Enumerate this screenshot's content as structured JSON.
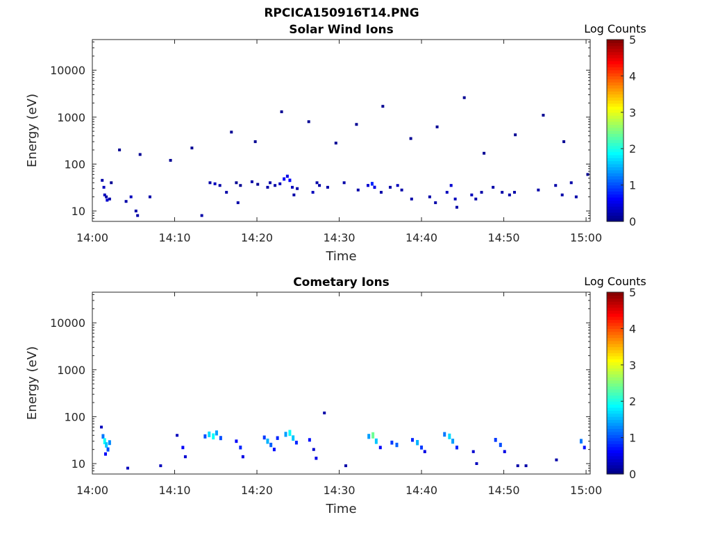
{
  "figure": {
    "title": "RPCICA150916T14.PNG"
  },
  "colorscale": {
    "label": "Log Counts",
    "ticks": [
      0,
      1,
      2,
      3,
      4,
      5
    ],
    "stops": [
      "#00007f",
      "#0000ff",
      "#0080ff",
      "#00ffff",
      "#80ff80",
      "#ffff00",
      "#ff8000",
      "#ff0000",
      "#7f0000"
    ]
  },
  "chart_data": [
    {
      "type": "heatmap",
      "title": "Solar Wind Ions",
      "xlabel": "Time",
      "ylabel": "Energy (eV)",
      "x_ticks": [
        "14:00",
        "14:10",
        "14:20",
        "14:30",
        "14:40",
        "14:50",
        "15:00"
      ],
      "y_scale": "log",
      "y_ticks": [
        10,
        100,
        1000,
        10000
      ],
      "y_tick_labels": [
        "10",
        "100",
        "1000",
        "10000"
      ],
      "ylim": [
        6,
        45000
      ],
      "xlim_minutes": [
        0,
        60.5
      ],
      "colorbar_label": "Log Counts",
      "clim": [
        0,
        5
      ],
      "cells": [
        [
          1.2,
          45,
          0.2
        ],
        [
          1.4,
          32,
          0.3
        ],
        [
          1.5,
          22,
          0.3
        ],
        [
          1.7,
          20,
          0.2
        ],
        [
          1.8,
          17,
          0.4
        ],
        [
          2.1,
          18,
          0.2
        ],
        [
          2.3,
          40,
          0.1
        ],
        [
          4.1,
          16,
          0.2
        ],
        [
          4.7,
          20,
          0.3
        ],
        [
          5.3,
          10,
          0.2
        ],
        [
          5.5,
          8,
          0.2
        ],
        [
          7.0,
          20,
          0.2
        ],
        [
          13.3,
          8,
          0.2
        ],
        [
          14.3,
          40,
          0.2
        ],
        [
          14.9,
          38,
          0.3
        ],
        [
          15.5,
          35,
          0.2
        ],
        [
          16.3,
          25,
          0.2
        ],
        [
          17.5,
          40,
          0.1
        ],
        [
          18.0,
          35,
          0.1
        ],
        [
          17.7,
          15,
          0.2
        ],
        [
          19.4,
          42,
          0.2
        ],
        [
          20.1,
          37,
          0.1
        ],
        [
          21.3,
          32,
          0.2
        ],
        [
          21.6,
          40,
          0.2
        ],
        [
          22.2,
          35,
          0.2
        ],
        [
          22.8,
          38,
          0.3
        ],
        [
          23.3,
          48,
          0.6
        ],
        [
          23.7,
          55,
          0.5
        ],
        [
          24.0,
          45,
          0.6
        ],
        [
          24.3,
          32,
          0.3
        ],
        [
          24.5,
          22,
          0.2
        ],
        [
          24.9,
          30,
          0.2
        ],
        [
          26.8,
          25,
          0.3
        ],
        [
          27.3,
          40,
          0.2
        ],
        [
          27.6,
          35,
          0.2
        ],
        [
          28.6,
          32,
          0.2
        ],
        [
          30.6,
          40,
          0.2
        ],
        [
          32.3,
          28,
          0.2
        ],
        [
          33.5,
          35,
          0.4
        ],
        [
          34.0,
          38,
          0.8
        ],
        [
          34.3,
          32,
          0.5
        ],
        [
          35.1,
          25,
          0.2
        ],
        [
          36.2,
          32,
          0.2
        ],
        [
          37.1,
          35,
          0.3
        ],
        [
          37.6,
          28,
          0.2
        ],
        [
          38.8,
          18,
          0.2
        ],
        [
          41.0,
          20,
          0.2
        ],
        [
          41.7,
          15,
          0.2
        ],
        [
          43.1,
          25,
          0.3
        ],
        [
          43.6,
          35,
          0.4
        ],
        [
          44.1,
          18,
          0.3
        ],
        [
          44.3,
          12,
          0.2
        ],
        [
          46.1,
          22,
          0.3
        ],
        [
          46.6,
          18,
          0.2
        ],
        [
          47.3,
          25,
          0.2
        ],
        [
          48.7,
          32,
          0.2
        ],
        [
          49.8,
          25,
          0.2
        ],
        [
          50.7,
          22,
          0.2
        ],
        [
          51.3,
          25,
          0.2
        ],
        [
          54.2,
          28,
          0.2
        ],
        [
          56.3,
          35,
          0.2
        ],
        [
          57.1,
          22,
          0.2
        ],
        [
          58.2,
          40,
          0.2
        ],
        [
          58.8,
          20,
          0.2
        ],
        [
          60.2,
          60,
          0.1
        ],
        [
          3.3,
          200,
          0.1
        ],
        [
          5.8,
          160,
          0.1
        ],
        [
          9.5,
          120,
          0.1
        ],
        [
          12.1,
          220,
          0.1
        ],
        [
          16.9,
          480,
          0.1
        ],
        [
          19.8,
          300,
          0.1
        ],
        [
          23.0,
          1300,
          0.1
        ],
        [
          26.3,
          800,
          0.1
        ],
        [
          29.6,
          280,
          0.1
        ],
        [
          32.1,
          700,
          0.1
        ],
        [
          35.3,
          1700,
          0.1
        ],
        [
          38.7,
          350,
          0.1
        ],
        [
          41.9,
          620,
          0.1
        ],
        [
          45.2,
          2600,
          0.1
        ],
        [
          47.6,
          170,
          0.1
        ],
        [
          51.4,
          420,
          0.1
        ],
        [
          54.8,
          1100,
          0.1
        ],
        [
          57.3,
          300,
          0.1
        ]
      ]
    },
    {
      "type": "heatmap",
      "title": "Cometary Ions",
      "xlabel": "Time",
      "ylabel": "Energy (eV)",
      "x_ticks": [
        "14:00",
        "14:10",
        "14:20",
        "14:30",
        "14:40",
        "14:50",
        "15:00"
      ],
      "y_scale": "log",
      "y_ticks": [
        10,
        100,
        1000,
        10000
      ],
      "y_tick_labels": [
        "10",
        "100",
        "1000",
        "10000"
      ],
      "ylim": [
        6,
        45000
      ],
      "xlim_minutes": [
        0,
        60.5
      ],
      "colorbar_label": "Log Counts",
      "clim": [
        0,
        5
      ],
      "cells": [
        [
          1.1,
          60,
          0.3
        ],
        [
          1.3,
          38,
          1.2
        ],
        [
          1.5,
          30,
          1.9
        ],
        [
          1.7,
          25,
          1.6
        ],
        [
          1.9,
          20,
          1.0
        ],
        [
          1.6,
          16,
          0.6
        ],
        [
          2.1,
          28,
          1.3
        ],
        [
          4.3,
          8,
          0.3
        ],
        [
          8.3,
          9,
          0.3
        ],
        [
          10.3,
          40,
          0.3
        ],
        [
          11.0,
          22,
          0.6
        ],
        [
          11.3,
          14,
          0.4
        ],
        [
          13.7,
          38,
          1.0
        ],
        [
          14.2,
          42,
          1.7
        ],
        [
          14.7,
          38,
          1.9
        ],
        [
          15.1,
          45,
          1.4
        ],
        [
          15.6,
          35,
          1.0
        ],
        [
          17.5,
          30,
          0.6
        ],
        [
          18.0,
          22,
          0.8
        ],
        [
          18.3,
          14,
          0.5
        ],
        [
          20.9,
          36,
          0.9
        ],
        [
          21.3,
          30,
          1.5
        ],
        [
          21.7,
          25,
          1.1
        ],
        [
          22.1,
          20,
          0.7
        ],
        [
          22.5,
          35,
          0.8
        ],
        [
          23.5,
          42,
          1.4
        ],
        [
          24.0,
          45,
          1.9
        ],
        [
          24.4,
          35,
          1.6
        ],
        [
          24.8,
          28,
          0.8
        ],
        [
          26.4,
          32,
          0.7
        ],
        [
          26.9,
          20,
          0.4
        ],
        [
          27.2,
          13,
          0.5
        ],
        [
          28.2,
          120,
          0.2
        ],
        [
          30.8,
          9,
          0.2
        ],
        [
          33.6,
          38,
          1.4
        ],
        [
          34.1,
          40,
          2.4
        ],
        [
          34.5,
          30,
          1.6
        ],
        [
          35.0,
          22,
          0.6
        ],
        [
          36.4,
          28,
          0.9
        ],
        [
          37.0,
          25,
          1.1
        ],
        [
          38.9,
          32,
          0.8
        ],
        [
          39.5,
          28,
          1.5
        ],
        [
          40.0,
          22,
          0.9
        ],
        [
          40.4,
          18,
          0.5
        ],
        [
          42.8,
          42,
          1.2
        ],
        [
          43.4,
          38,
          1.7
        ],
        [
          43.8,
          30,
          1.4
        ],
        [
          44.3,
          22,
          0.8
        ],
        [
          46.3,
          18,
          0.4
        ],
        [
          46.7,
          10,
          0.3
        ],
        [
          49.0,
          32,
          0.9
        ],
        [
          49.6,
          25,
          1.0
        ],
        [
          50.1,
          18,
          0.5
        ],
        [
          51.7,
          9,
          0.2
        ],
        [
          52.7,
          9,
          0.2
        ],
        [
          56.4,
          12,
          0.2
        ],
        [
          59.4,
          30,
          1.2
        ],
        [
          59.8,
          22,
          0.7
        ]
      ]
    }
  ]
}
